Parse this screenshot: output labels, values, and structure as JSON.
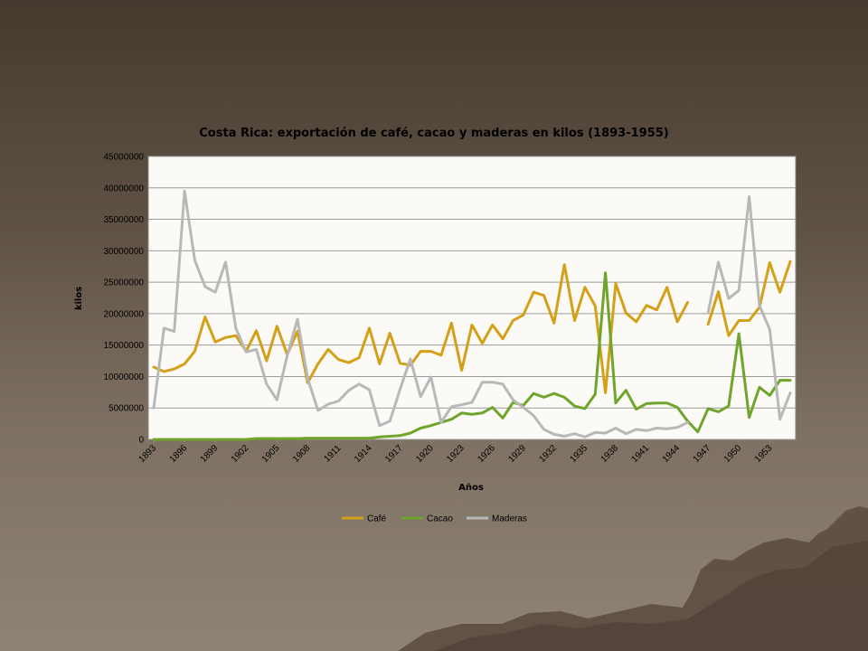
{
  "chart_data": {
    "type": "line",
    "title": "Costa Rica: exportación de café, cacao y maderas en kilos (1893-1955)",
    "xlabel": "Años",
    "ylabel": "kilos",
    "ylim": [
      0,
      45000000
    ],
    "yticks": [
      "0",
      "5000000",
      "10000000",
      "15000000",
      "20000000",
      "25000000",
      "30000000",
      "35000000",
      "40000000",
      "45000000"
    ],
    "x": [
      1893,
      1894,
      1895,
      1896,
      1897,
      1898,
      1899,
      1900,
      1901,
      1902,
      1903,
      1904,
      1905,
      1906,
      1907,
      1908,
      1909,
      1910,
      1911,
      1912,
      1913,
      1914,
      1915,
      1916,
      1917,
      1918,
      1919,
      1920,
      1921,
      1922,
      1923,
      1924,
      1925,
      1926,
      1927,
      1928,
      1929,
      1930,
      1931,
      1932,
      1933,
      1934,
      1935,
      1936,
      1937,
      1938,
      1939,
      1940,
      1941,
      1942,
      1943,
      1944,
      1945,
      1946,
      1947,
      1948,
      1949,
      1950,
      1951,
      1952,
      1953,
      1954,
      1955
    ],
    "xticks": [
      "1893",
      "1896",
      "1899",
      "1902",
      "1905",
      "1908",
      "1911",
      "1914",
      "1917",
      "1920",
      "1923",
      "1926",
      "1929",
      "1932",
      "1935",
      "1938",
      "1941",
      "1944",
      "1947",
      "1950",
      "1953"
    ],
    "grid": "horizontal",
    "legend": "bottom",
    "series": [
      {
        "name": "Café",
        "color": "#d4a017",
        "values": [
          11500000,
          10800000,
          11200000,
          12000000,
          14000000,
          19500000,
          15500000,
          16200000,
          16500000,
          14000000,
          17300000,
          12500000,
          18000000,
          13500000,
          17200000,
          9000000,
          12000000,
          14300000,
          12700000,
          12200000,
          13000000,
          17700000,
          12000000,
          16900000,
          12100000,
          11800000,
          14000000,
          14000000,
          13400000,
          18500000,
          11000000,
          18200000,
          15300000,
          18200000,
          16000000,
          18900000,
          19800000,
          23400000,
          22900000,
          18500000,
          27800000,
          18900000,
          24200000,
          21200000,
          7400000,
          24800000,
          20100000,
          18700000,
          21300000,
          20600000,
          24200000,
          18700000,
          21800000,
          null,
          18300000,
          23500000,
          16500000,
          18900000,
          18900000,
          21000000,
          28100000,
          23400000,
          28300000
        ]
      },
      {
        "name": "Cacao",
        "color": "#6fa52a",
        "values": [
          0,
          0,
          0,
          0,
          0,
          0,
          0,
          0,
          0,
          0,
          150000,
          150000,
          150000,
          150000,
          150000,
          200000,
          200000,
          200000,
          200000,
          200000,
          200000,
          200000,
          400000,
          500000,
          600000,
          1000000,
          1800000,
          2200000,
          2700000,
          3200000,
          4200000,
          4000000,
          4200000,
          5100000,
          3400000,
          5900000,
          5400000,
          7300000,
          6700000,
          7300000,
          6700000,
          5300000,
          4900000,
          7200000,
          26500000,
          5800000,
          7800000,
          4800000,
          5700000,
          5800000,
          5800000,
          5100000,
          2900000,
          1200000,
          4900000,
          4400000,
          5300000,
          16800000,
          3500000,
          8300000,
          7000000,
          9400000,
          9400000
        ]
      },
      {
        "name": "Maderas",
        "color": "#b8b8b8",
        "values": [
          5000000,
          17700000,
          17200000,
          39500000,
          28500000,
          24300000,
          23400000,
          28200000,
          17700000,
          13900000,
          14300000,
          8800000,
          6300000,
          13300000,
          19100000,
          9700000,
          4600000,
          5600000,
          6100000,
          7800000,
          8800000,
          7900000,
          2200000,
          2900000,
          8000000,
          12800000,
          6800000,
          9900000,
          2700000,
          5200000,
          5500000,
          5900000,
          9100000,
          9100000,
          8800000,
          6300000,
          5100000,
          3800000,
          1600000,
          800000,
          500000,
          900000,
          400000,
          1100000,
          1000000,
          1800000,
          900000,
          1600000,
          1400000,
          1800000,
          1700000,
          1900000,
          2700000,
          null,
          20200000,
          28200000,
          22400000,
          23700000,
          38600000,
          21300000,
          17500000,
          3200000,
          7400000
        ]
      }
    ]
  }
}
